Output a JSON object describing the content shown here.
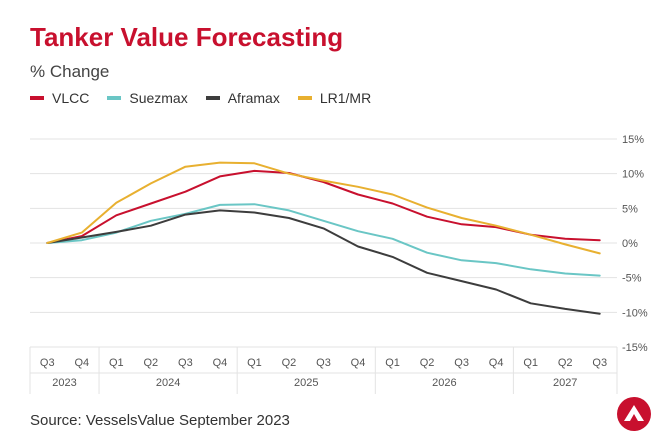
{
  "title": "Tanker Value Forecasting",
  "subtitle": "% Change",
  "source": "Source: VesselsValue September 2023",
  "colors": {
    "title": "#c8102e",
    "grid": "#e3e3e3"
  },
  "chart_data": {
    "type": "line",
    "title": "Tanker Value Forecasting",
    "subtitle": "% Change",
    "x": [
      "Q3",
      "Q4",
      "Q1",
      "Q2",
      "Q3",
      "Q4",
      "Q1",
      "Q2",
      "Q3",
      "Q4",
      "Q1",
      "Q2",
      "Q3",
      "Q4",
      "Q1",
      "Q2",
      "Q3"
    ],
    "years": [
      {
        "label": "2023",
        "start": 0,
        "end": 1
      },
      {
        "label": "2024",
        "start": 2,
        "end": 5
      },
      {
        "label": "2025",
        "start": 6,
        "end": 9
      },
      {
        "label": "2026",
        "start": 10,
        "end": 13
      },
      {
        "label": "2027",
        "start": 14,
        "end": 16
      }
    ],
    "ylim": [
      -15,
      15
    ],
    "yticks": [
      15,
      10,
      5,
      0,
      -5,
      -10,
      -15
    ],
    "ytick_labels": [
      "15%",
      "10%",
      "5%",
      "0%",
      "-5%",
      "-10%",
      "-15%"
    ],
    "grid": true,
    "legend_position": "top-left",
    "series": [
      {
        "name": "VLCC",
        "color": "#c8102e",
        "values": [
          0,
          1.0,
          4.0,
          5.7,
          7.4,
          9.6,
          10.4,
          10.1,
          8.8,
          7.0,
          5.7,
          3.8,
          2.7,
          2.3,
          1.2,
          0.6,
          0.4
        ]
      },
      {
        "name": "Suezmax",
        "color": "#6ac6c5",
        "values": [
          0,
          0.4,
          1.5,
          3.2,
          4.2,
          5.5,
          5.6,
          4.7,
          3.2,
          1.7,
          0.6,
          -1.4,
          -2.5,
          -2.9,
          -3.8,
          -4.4,
          -4.7
        ]
      },
      {
        "name": "Aframax",
        "color": "#3d3d3d",
        "values": [
          0,
          0.8,
          1.6,
          2.5,
          4.1,
          4.7,
          4.4,
          3.6,
          2.1,
          -0.5,
          -2.0,
          -4.3,
          -5.5,
          -6.7,
          -8.7,
          -9.5,
          -10.2
        ]
      },
      {
        "name": "LR1/MR",
        "color": "#e8b030",
        "values": [
          0,
          1.5,
          5.8,
          8.6,
          11.0,
          11.6,
          11.5,
          10.0,
          9.0,
          8.1,
          7.0,
          5.1,
          3.6,
          2.5,
          1.2,
          -0.2,
          -1.5
        ]
      }
    ]
  }
}
